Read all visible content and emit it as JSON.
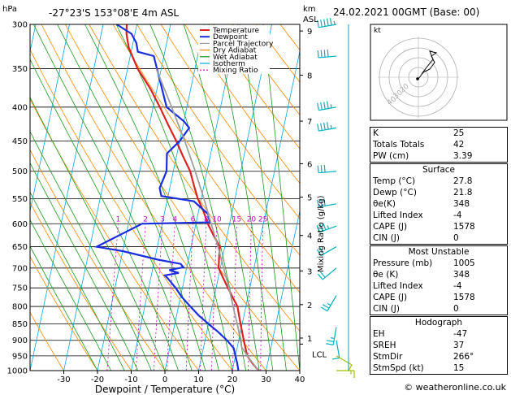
{
  "header": {
    "hpa_label": "hPa",
    "location": "-27°23'S  153°08'E  4m  ASL",
    "km_label": "km",
    "asl_label": "ASL",
    "datetime": "24.02.2021  00GMT  (Base: 00)"
  },
  "axes": {
    "x_label": "Dewpoint / Temperature (°C)",
    "mixing_label": "Mixing Ratio (g/kg)",
    "pressure_ticks": [
      "300",
      "350",
      "400",
      "450",
      "500",
      "550",
      "600",
      "650",
      "700",
      "750",
      "800",
      "850",
      "900",
      "950",
      "1000"
    ],
    "temp_ticks": [
      "-30",
      "-20",
      "-10",
      "0",
      "10",
      "20",
      "30",
      "40"
    ],
    "km_ticks": [
      "9",
      "8",
      "7",
      "6",
      "5",
      "4",
      "3",
      "2",
      "1"
    ],
    "lcl_label": "LCL",
    "mixing_ratio_labels": [
      "1",
      "2",
      "3",
      "4",
      "6",
      "8",
      "10",
      "15",
      "20",
      "25"
    ]
  },
  "legend": [
    "Temperature",
    "Dewpoint",
    "Parcel Trajectory",
    "Dry Adiabat",
    "Wet Adiabat",
    "Isotherm",
    "Mixing Ratio"
  ],
  "colors": {
    "temperature": "#dd2020",
    "dewpoint": "#1a2ee0",
    "parcel": "#a0a0a0",
    "dry_adiabat": "#ff8800",
    "wet_adiabat": "#1a9a1a",
    "isotherm": "#00a8e0",
    "mixing_ratio": "#cc00cc",
    "wind": "#00b0c0"
  },
  "hodograph": {
    "unit_label": "kt",
    "ring_labels": [
      "40",
      "30",
      "20"
    ]
  },
  "indices": {
    "rows": [
      {
        "label": "K",
        "value": "25"
      },
      {
        "label": "Totals Totals",
        "value": "42"
      },
      {
        "label": "PW (cm)",
        "value": "3.39"
      }
    ]
  },
  "surface": {
    "title": "Surface",
    "rows": [
      {
        "label": "Temp (°C)",
        "value": "27.8"
      },
      {
        "label": "Dewp (°C)",
        "value": "21.8"
      },
      {
        "label": "θe(K)",
        "value": "348"
      },
      {
        "label": "Lifted Index",
        "value": "-4"
      },
      {
        "label": "CAPE (J)",
        "value": "1578"
      },
      {
        "label": "CIN (J)",
        "value": "0"
      }
    ]
  },
  "most_unstable": {
    "title": "Most Unstable",
    "rows": [
      {
        "label": "Pressure (mb)",
        "value": "1005"
      },
      {
        "label": "θe (K)",
        "value": "348"
      },
      {
        "label": "Lifted Index",
        "value": "-4"
      },
      {
        "label": "CAPE (J)",
        "value": "1578"
      },
      {
        "label": "CIN (J)",
        "value": "0"
      }
    ]
  },
  "hodograph_stats": {
    "title": "Hodograph",
    "rows": [
      {
        "label": "EH",
        "value": "-47"
      },
      {
        "label": "SREH",
        "value": "37"
      },
      {
        "label": "StmDir",
        "value": "266°"
      },
      {
        "label": "StmSpd (kt)",
        "value": "15"
      }
    ]
  },
  "footer": "© weatheronline.co.uk",
  "chart_data": {
    "type": "line",
    "x_unit": "°C",
    "y_unit": "hPa",
    "xlim": [
      -35,
      40
    ],
    "ylim": [
      1000,
      300
    ],
    "y_scale": "log",
    "skew": true,
    "series": [
      {
        "name": "Temperature",
        "p": [
          1000,
          975,
          950,
          925,
          900,
          875,
          850,
          825,
          800,
          775,
          750,
          725,
          700,
          675,
          650,
          625,
          600,
          575,
          550,
          525,
          500,
          475,
          450,
          425,
          400,
          375,
          350,
          325,
          310,
          300
        ],
        "t": [
          27.8,
          25.5,
          23.5,
          22.5,
          21.5,
          20.5,
          19.5,
          18.5,
          17.5,
          15.5,
          13.5,
          11.5,
          9.5,
          9,
          8.5,
          6,
          3.5,
          1.5,
          -1,
          -3,
          -5,
          -8,
          -11,
          -14.5,
          -18,
          -22,
          -27,
          -31,
          -32.5,
          -33
        ]
      },
      {
        "name": "Dewpoint",
        "p": [
          1000,
          975,
          950,
          925,
          900,
          875,
          850,
          825,
          800,
          775,
          750,
          725,
          718,
          712,
          705,
          698,
          690,
          680,
          660,
          650,
          600,
          597,
          580,
          565,
          555,
          545,
          530,
          500,
          470,
          450,
          430,
          420,
          400,
          335,
          330,
          320,
          310,
          300
        ],
        "t": [
          21.8,
          21,
          20,
          19,
          16.5,
          13.5,
          10,
          6.5,
          3.5,
          0.5,
          -2,
          -5,
          -6,
          -2,
          -5,
          -1,
          -2,
          -9,
          -20,
          -28,
          -16,
          4,
          3,
          0,
          -2,
          -12,
          -13,
          -12,
          -13,
          -10,
          -8,
          -10,
          -16,
          -23,
          -28,
          -29,
          -31,
          -36
        ]
      },
      {
        "name": "Parcel Trajectory",
        "p": [
          1000,
          950,
          920,
          900,
          850,
          800,
          750,
          700,
          650,
          600,
          550,
          500,
          450,
          400,
          350
        ],
        "t": [
          27.8,
          23.5,
          21.2,
          20.7,
          18.5,
          16.2,
          13.8,
          11,
          8,
          4.5,
          0.8,
          -3.5,
          -8.5,
          -14.5,
          -21.5
        ]
      }
    ],
    "km_levels": [
      {
        "label": "9",
        "p": 307
      },
      {
        "label": "8",
        "p": 358
      },
      {
        "label": "7",
        "p": 420
      },
      {
        "label": "6",
        "p": 487
      },
      {
        "label": "5",
        "p": 547
      },
      {
        "label": "4",
        "p": 625
      },
      {
        "label": "3",
        "p": 707
      },
      {
        "label": "2",
        "p": 795
      },
      {
        "label": "1",
        "p": 893
      }
    ],
    "lcl_p": 912,
    "wind_barbs": [
      {
        "p": 300,
        "dir": 260,
        "spd": 45
      },
      {
        "p": 335,
        "dir": 265,
        "spd": 40
      },
      {
        "p": 400,
        "dir": 260,
        "spd": 35
      },
      {
        "p": 430,
        "dir": 260,
        "spd": 35
      },
      {
        "p": 500,
        "dir": 265,
        "spd": 30
      },
      {
        "p": 560,
        "dir": 260,
        "spd": 30
      },
      {
        "p": 605,
        "dir": 250,
        "spd": 25
      },
      {
        "p": 650,
        "dir": 240,
        "spd": 20
      },
      {
        "p": 700,
        "dir": 230,
        "spd": 20
      },
      {
        "p": 770,
        "dir": 210,
        "spd": 15
      },
      {
        "p": 860,
        "dir": 190,
        "spd": 15
      },
      {
        "p": 900,
        "dir": 170,
        "spd": 10
      },
      {
        "p": 950,
        "dir": 120,
        "spd": 10
      },
      {
        "p": 1000,
        "dir": 90,
        "spd": 5
      }
    ],
    "hodograph_path": [
      [
        0,
        -2
      ],
      [
        6,
        6
      ],
      [
        14,
        10
      ],
      [
        20,
        18
      ],
      [
        16,
        26
      ],
      [
        22,
        30
      ],
      [
        14,
        32
      ],
      [
        18,
        22
      ],
      [
        10,
        12
      ],
      [
        4,
        4
      ]
    ]
  }
}
